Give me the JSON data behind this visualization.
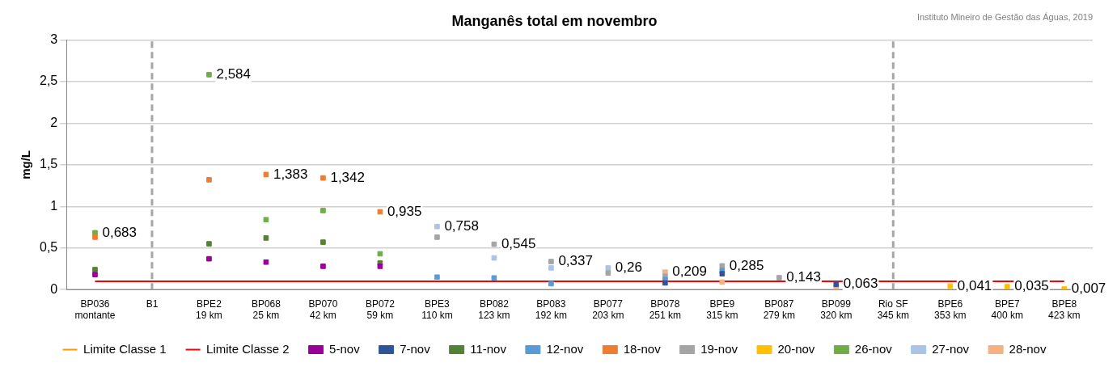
{
  "chart_data": {
    "type": "scatter",
    "title": "Manganês total em novembro",
    "ylabel": "mg/L",
    "categories": [
      "BP036\nmontante",
      "B1",
      "BPE2\n19 km",
      "BP068\n25 km",
      "BP070\n42 km",
      "BP072\n59 km",
      "BPE3\n110 km",
      "BP082\n123 km",
      "BP083\n192 km",
      "BP077\n203 km",
      "BP078\n251 km",
      "BPE9\n315 km",
      "BP087\n279 km",
      "BP099\n320 km",
      "Rio SF\n345 km",
      "BPE6\n353 km",
      "BPE7\n400 km",
      "BPE8\n423 km"
    ],
    "series": [
      {
        "name": "Limite Classe 1",
        "type": "line",
        "marker": "none",
        "color": "#ff9900",
        "values": [
          null,
          null,
          null,
          null,
          null,
          null,
          null,
          null,
          null,
          null,
          null,
          null,
          null,
          null,
          null,
          null,
          null,
          null
        ]
      },
      {
        "name": "Limite Classe 2",
        "type": "line",
        "marker": "none",
        "color": "#ff0000",
        "values": [
          0.1,
          0.1,
          0.1,
          0.1,
          0.1,
          0.1,
          0.1,
          0.1,
          0.1,
          0.1,
          0.1,
          0.1,
          0.1,
          0.1,
          0.1,
          0.1,
          0.1,
          0.1
        ]
      },
      {
        "name": "5-nov",
        "color": "#990099",
        "values": [
          0.18,
          null,
          0.37,
          0.33,
          0.28,
          0.28,
          null,
          null,
          null,
          null,
          null,
          null,
          null,
          null,
          null,
          null,
          null,
          null
        ]
      },
      {
        "name": "7-nov",
        "color": "#2f5597",
        "values": [
          null,
          null,
          null,
          null,
          null,
          null,
          null,
          null,
          null,
          null,
          0.08,
          0.19,
          null,
          0.063,
          null,
          null,
          null,
          null
        ]
      },
      {
        "name": "11-nov",
        "color": "#548235",
        "values": [
          0.24,
          null,
          0.55,
          0.62,
          0.57,
          0.32,
          null,
          null,
          null,
          null,
          null,
          null,
          null,
          null,
          null,
          null,
          null,
          null
        ]
      },
      {
        "name": "12-nov",
        "color": "#5b9bd5",
        "values": [
          null,
          null,
          null,
          null,
          null,
          null,
          0.15,
          0.14,
          0.07,
          null,
          0.12,
          0.23,
          null,
          null,
          null,
          null,
          null,
          null
        ]
      },
      {
        "name": "18-nov",
        "color": "#ed7d31",
        "values": [
          0.63,
          null,
          1.32,
          1.383,
          1.342,
          0.935,
          null,
          null,
          null,
          null,
          null,
          null,
          null,
          null,
          null,
          null,
          null,
          null
        ]
      },
      {
        "name": "19-nov",
        "color": "#a5a5a5",
        "values": [
          null,
          null,
          null,
          null,
          null,
          null,
          0.63,
          0.545,
          0.337,
          0.2,
          0.16,
          0.285,
          0.143,
          null,
          null,
          null,
          null,
          null
        ]
      },
      {
        "name": "20-nov",
        "color": "#ffc000",
        "values": [
          null,
          null,
          null,
          null,
          null,
          null,
          null,
          null,
          null,
          null,
          null,
          null,
          null,
          null,
          null,
          0.041,
          0.035,
          0.007
        ]
      },
      {
        "name": "26-nov",
        "color": "#70ad47",
        "values": [
          0.683,
          null,
          2.584,
          0.84,
          0.95,
          0.43,
          null,
          null,
          null,
          null,
          null,
          null,
          null,
          null,
          null,
          null,
          null,
          null
        ]
      },
      {
        "name": "27-nov",
        "color": "#a9c4e6",
        "values": [
          null,
          null,
          null,
          null,
          null,
          null,
          0.758,
          0.38,
          0.26,
          0.26,
          null,
          null,
          null,
          null,
          null,
          null,
          null,
          null
        ]
      },
      {
        "name": "28-nov",
        "color": "#f4b183",
        "values": [
          null,
          null,
          null,
          null,
          null,
          null,
          null,
          null,
          null,
          null,
          0.209,
          0.09,
          null,
          0.02,
          null,
          null,
          null,
          null
        ]
      }
    ],
    "ylim": [
      0,
      3
    ],
    "yticks": [
      0,
      {
        "value": 0.5,
        "label": "0,5"
      },
      1,
      {
        "value": 1.5,
        "label": "1,5"
      },
      2,
      {
        "value": 2.5,
        "label": "2,5"
      },
      3
    ],
    "grid": "y",
    "legend": "bottom",
    "marker": "square",
    "ref_lines": [
      {
        "axis": "x",
        "value": "B1",
        "color": "#a6a6a6",
        "line_style": "dashed"
      },
      {
        "axis": "x",
        "value": "Rio SF\n345 km",
        "color": "#a6a6a6",
        "line_style": "dashed"
      }
    ],
    "annotations": [
      "Instituto Mineiro de Gestão das Águas, 2019",
      {
        "text": "0,683",
        "x": "BP036\nmontante",
        "y": 0.683
      },
      {
        "text": "2,584",
        "x": "BPE2\n19 km",
        "y": 2.584
      },
      {
        "text": "1,383",
        "x": "BP068\n25 km",
        "y": 1.383
      },
      {
        "text": "1,342",
        "x": "BP070\n42 km",
        "y": 1.342
      },
      {
        "text": "0,935",
        "x": "BP072\n59 km",
        "y": 0.935
      },
      {
        "text": "0,758",
        "x": "BPE3\n110 km",
        "y": 0.758
      },
      {
        "text": "0,545",
        "x": "BP082\n123 km",
        "y": 0.545
      },
      {
        "text": "0,337",
        "x": "BP083\n192 km",
        "y": 0.337
      },
      {
        "text": "0,26",
        "x": "BP077\n203 km",
        "y": 0.26
      },
      {
        "text": "0,209",
        "x": "BP078\n251 km",
        "y": 0.209
      },
      {
        "text": "0,285",
        "x": "BPE9\n315 km",
        "y": 0.285
      },
      {
        "text": "0,143",
        "x": "BP087\n279 km",
        "y": 0.143
      },
      {
        "text": "0,063",
        "x": "BP099\n320 km",
        "y": 0.063
      },
      {
        "text": "0,041",
        "x": "BPE6\n353 km",
        "y": 0.041
      },
      {
        "text": "0,035",
        "x": "BPE7\n400 km",
        "y": 0.035
      },
      {
        "text": "0,007",
        "x": "BPE8\n423 km",
        "y": 0.007
      }
    ]
  }
}
